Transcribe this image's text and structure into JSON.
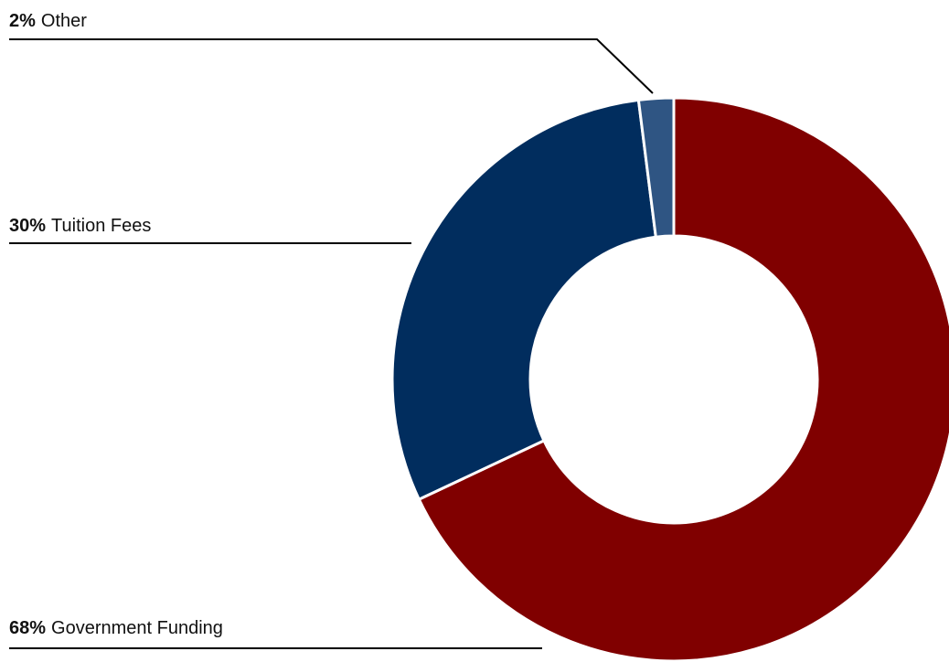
{
  "chart_data": {
    "type": "donut",
    "categories": [
      "Government Funding",
      "Tuition Fees",
      "Other"
    ],
    "values": [
      68,
      30,
      2
    ],
    "value_labels": [
      "68%",
      "30%",
      "2%"
    ],
    "colors": [
      "#800000",
      "#012d5e",
      "#2f5583"
    ]
  }
}
